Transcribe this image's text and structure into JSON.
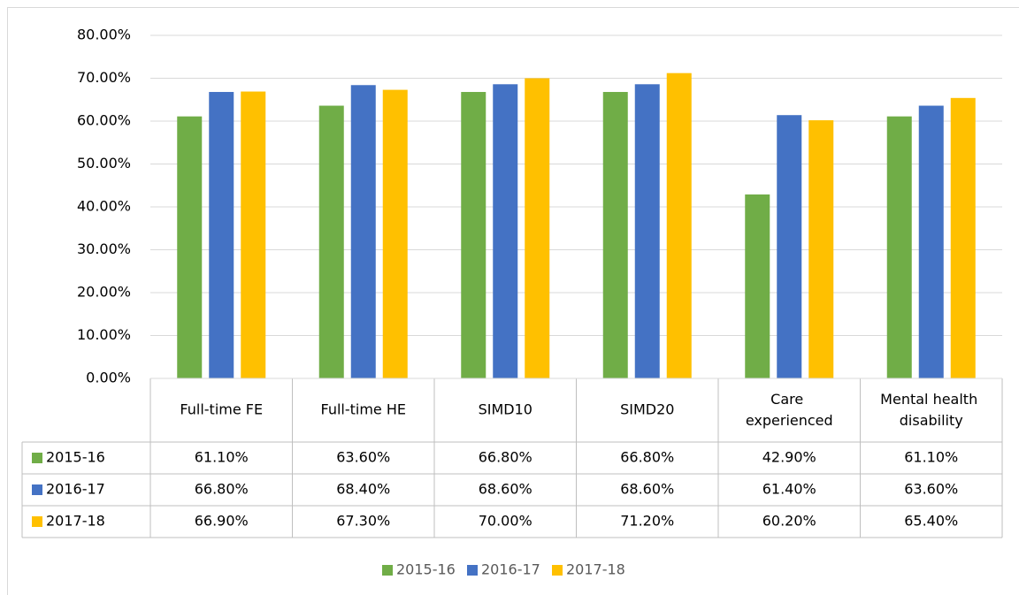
{
  "chart_data": {
    "type": "bar",
    "categories": [
      "Full-time FE",
      "Full-time HE",
      "SIMD10",
      "SIMD20",
      "Care experienced",
      "Mental health disability"
    ],
    "series": [
      {
        "name": "2015-16",
        "color": "#70ad47",
        "values": [
          61.1,
          63.6,
          66.8,
          66.8,
          42.9,
          61.1
        ],
        "value_labels": [
          "61.10%",
          "63.60%",
          "66.80%",
          "66.80%",
          "42.90%",
          "61.10%"
        ]
      },
      {
        "name": "2016-17",
        "color": "#4472c4",
        "values": [
          66.8,
          68.4,
          68.6,
          68.6,
          61.4,
          63.6
        ],
        "value_labels": [
          "66.80%",
          "68.40%",
          "68.60%",
          "68.60%",
          "61.40%",
          "63.60%"
        ]
      },
      {
        "name": "2017-18",
        "color": "#ffc000",
        "values": [
          66.9,
          67.3,
          70.0,
          71.2,
          60.2,
          65.4
        ],
        "value_labels": [
          "66.90%",
          "67.30%",
          "70.00%",
          "71.20%",
          "60.20%",
          "65.40%"
        ]
      }
    ],
    "ylim": [
      0,
      80
    ],
    "yticks": [
      {
        "value": 0,
        "label": "0.00%"
      },
      {
        "value": 10,
        "label": "10.00%"
      },
      {
        "value": 20,
        "label": "20.00%"
      },
      {
        "value": 30,
        "label": "30.00%"
      },
      {
        "value": 40,
        "label": "40.00%"
      },
      {
        "value": 50,
        "label": "50.00%"
      },
      {
        "value": 60,
        "label": "60.00%"
      },
      {
        "value": 70,
        "label": "70.00%"
      },
      {
        "value": 80,
        "label": "80.00%"
      }
    ],
    "grid": true,
    "legend": "bottom"
  }
}
